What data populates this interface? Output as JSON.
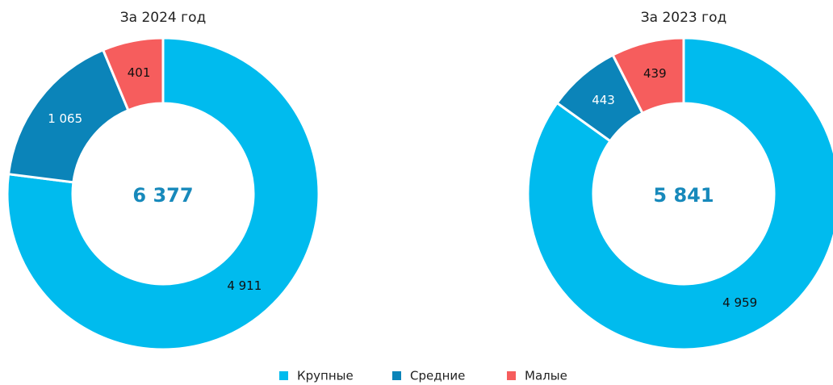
{
  "chart_data": [
    {
      "type": "donut",
      "title": "За 2024 год",
      "center_label": "6 377",
      "categories": [
        "Крупные",
        "Средние",
        "Малые"
      ],
      "values": [
        4911,
        1065,
        401
      ],
      "value_labels": [
        "4 911",
        "1 065",
        "401"
      ],
      "colors": [
        "#00bbee",
        "#0b84b9",
        "#f65d5d"
      ],
      "label_colors": [
        "#111111",
        "#ffffff",
        "#111111"
      ]
    },
    {
      "type": "donut",
      "title": "За 2023 год",
      "center_label": "5 841",
      "categories": [
        "Крупные",
        "Средние",
        "Малые"
      ],
      "values": [
        4959,
        443,
        439
      ],
      "value_labels": [
        "4 959",
        "443",
        "439"
      ],
      "colors": [
        "#00bbee",
        "#0b84b9",
        "#f65d5d"
      ],
      "label_colors": [
        "#111111",
        "#ffffff",
        "#111111"
      ]
    }
  ]
}
